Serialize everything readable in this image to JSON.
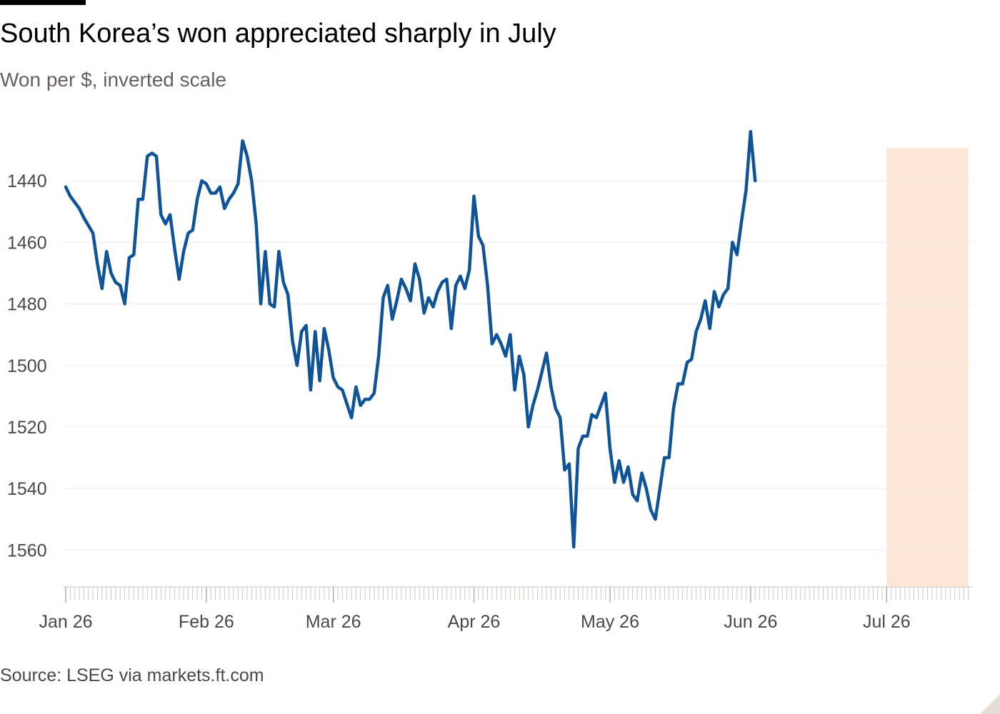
{
  "header": {
    "title": "South Korea’s won appreciated sharply in July",
    "subtitle": "Won per $, inverted scale"
  },
  "footer": {
    "source": "Source: LSEG via markets.ft.com"
  },
  "colors": {
    "line": "#0f5499",
    "highlight": "#fce6d7",
    "grid": "#f2ece6",
    "axis": "#cfc8c2",
    "text_muted": "#66605c",
    "text_axis": "#4d4845"
  },
  "chart_data": {
    "type": "line",
    "title": "South Korea’s won appreciated sharply in July",
    "subtitle": "Won per $, inverted scale",
    "xlabel": "",
    "ylabel": "",
    "inverted_y": true,
    "ylim": [
      1572,
      1423
    ],
    "yticks": [
      1440,
      1460,
      1480,
      1500,
      1520,
      1540,
      1560
    ],
    "xticks": [
      {
        "date": "2026-01-26",
        "label": "Jan 26"
      },
      {
        "date": "2026-02-26",
        "label": "Feb 26"
      },
      {
        "date": "2026-03-26",
        "label": "Mar 26"
      },
      {
        "date": "2026-04-26",
        "label": "Apr 26"
      },
      {
        "date": "2026-05-26",
        "label": "May 26"
      },
      {
        "date": "2026-06-26",
        "label": "Jun 26"
      },
      {
        "date": "2026-07-26",
        "label": "Jul 26"
      }
    ],
    "xlim": [
      "2026-01-26",
      "2026-08-14"
    ],
    "grid": true,
    "highlight_range": [
      "2026-07-26",
      "2026-08-13"
    ],
    "series": [
      {
        "points": [
          [
            "2026-01-26",
            1442
          ],
          [
            "2026-01-27",
            1445
          ],
          [
            "2026-01-28",
            1447
          ],
          [
            "2026-01-29",
            1449
          ],
          [
            "2026-01-30",
            1452
          ],
          [
            "2026-02-01",
            1457
          ],
          [
            "2026-02-02",
            1467
          ],
          [
            "2026-02-03",
            1475
          ],
          [
            "2026-02-04",
            1463
          ],
          [
            "2026-02-05",
            1470
          ],
          [
            "2026-02-06",
            1473
          ],
          [
            "2026-02-07",
            1474
          ],
          [
            "2026-02-08",
            1480
          ],
          [
            "2026-02-09",
            1465
          ],
          [
            "2026-02-10",
            1464
          ],
          [
            "2026-02-11",
            1446
          ],
          [
            "2026-02-12",
            1446
          ],
          [
            "2026-02-13",
            1432
          ],
          [
            "2026-02-14",
            1431
          ],
          [
            "2026-02-15",
            1432
          ],
          [
            "2026-02-16",
            1451
          ],
          [
            "2026-02-17",
            1454
          ],
          [
            "2026-02-18",
            1451
          ],
          [
            "2026-02-19",
            1462
          ],
          [
            "2026-02-20",
            1472
          ],
          [
            "2026-02-21",
            1463
          ],
          [
            "2026-02-22",
            1457
          ],
          [
            "2026-02-23",
            1456
          ],
          [
            "2026-02-24",
            1446
          ],
          [
            "2026-02-25",
            1440
          ],
          [
            "2026-02-26",
            1441
          ],
          [
            "2026-02-27",
            1444
          ],
          [
            "2026-02-28",
            1444
          ],
          [
            "2026-03-01",
            1442
          ],
          [
            "2026-03-02",
            1449
          ],
          [
            "2026-03-03",
            1446
          ],
          [
            "2026-03-04",
            1444
          ],
          [
            "2026-03-05",
            1441
          ],
          [
            "2026-03-06",
            1427
          ],
          [
            "2026-03-07",
            1432
          ],
          [
            "2026-03-08",
            1440
          ],
          [
            "2026-03-09",
            1454
          ],
          [
            "2026-03-10",
            1480
          ],
          [
            "2026-03-11",
            1463
          ],
          [
            "2026-03-12",
            1480
          ],
          [
            "2026-03-13",
            1481
          ],
          [
            "2026-03-14",
            1463
          ],
          [
            "2026-03-15",
            1473
          ],
          [
            "2026-03-16",
            1477
          ],
          [
            "2026-03-17",
            1492
          ],
          [
            "2026-03-18",
            1500
          ],
          [
            "2026-03-19",
            1489
          ],
          [
            "2026-03-20",
            1487
          ],
          [
            "2026-03-21",
            1508
          ],
          [
            "2026-03-22",
            1489
          ],
          [
            "2026-03-23",
            1505
          ],
          [
            "2026-03-24",
            1488
          ],
          [
            "2026-03-25",
            1495
          ],
          [
            "2026-03-26",
            1504
          ],
          [
            "2026-03-27",
            1507
          ],
          [
            "2026-03-28",
            1508
          ],
          [
            "2026-03-30",
            1517
          ],
          [
            "2026-03-31",
            1507
          ],
          [
            "2026-04-01",
            1513
          ],
          [
            "2026-04-02",
            1511
          ],
          [
            "2026-04-03",
            1511
          ],
          [
            "2026-04-04",
            1509
          ],
          [
            "2026-04-05",
            1497
          ],
          [
            "2026-04-06",
            1478
          ],
          [
            "2026-04-07",
            1474
          ],
          [
            "2026-04-08",
            1485
          ],
          [
            "2026-04-09",
            1479
          ],
          [
            "2026-04-10",
            1472
          ],
          [
            "2026-04-11",
            1475
          ],
          [
            "2026-04-12",
            1479
          ],
          [
            "2026-04-13",
            1467
          ],
          [
            "2026-04-14",
            1472
          ],
          [
            "2026-04-15",
            1483
          ],
          [
            "2026-04-16",
            1478
          ],
          [
            "2026-04-17",
            1481
          ],
          [
            "2026-04-18",
            1476
          ],
          [
            "2026-04-19",
            1473
          ],
          [
            "2026-04-20",
            1472
          ],
          [
            "2026-04-21",
            1488
          ],
          [
            "2026-04-22",
            1474
          ],
          [
            "2026-04-23",
            1471
          ],
          [
            "2026-04-24",
            1475
          ],
          [
            "2026-04-25",
            1469
          ],
          [
            "2026-04-26",
            1445
          ],
          [
            "2026-04-27",
            1458
          ],
          [
            "2026-04-28",
            1461
          ],
          [
            "2026-04-29",
            1474
          ],
          [
            "2026-04-30",
            1493
          ],
          [
            "2026-05-01",
            1490
          ],
          [
            "2026-05-02",
            1493
          ],
          [
            "2026-05-03",
            1497
          ],
          [
            "2026-05-04",
            1490
          ],
          [
            "2026-05-05",
            1508
          ],
          [
            "2026-05-06",
            1497
          ],
          [
            "2026-05-07",
            1503
          ],
          [
            "2026-05-08",
            1520
          ],
          [
            "2026-05-09",
            1513
          ],
          [
            "2026-05-10",
            1508
          ],
          [
            "2026-05-11",
            1502
          ],
          [
            "2026-05-12",
            1496
          ],
          [
            "2026-05-13",
            1507
          ],
          [
            "2026-05-14",
            1514
          ],
          [
            "2026-05-15",
            1517
          ],
          [
            "2026-05-16",
            1534
          ],
          [
            "2026-05-17",
            1532
          ],
          [
            "2026-05-18",
            1559
          ],
          [
            "2026-05-19",
            1527
          ],
          [
            "2026-05-20",
            1523
          ],
          [
            "2026-05-21",
            1523
          ],
          [
            "2026-05-22",
            1516
          ],
          [
            "2026-05-23",
            1517
          ],
          [
            "2026-05-24",
            1513
          ],
          [
            "2026-05-25",
            1509
          ],
          [
            "2026-05-26",
            1527
          ],
          [
            "2026-05-27",
            1538
          ],
          [
            "2026-05-28",
            1531
          ],
          [
            "2026-05-29",
            1538
          ],
          [
            "2026-05-30",
            1533
          ],
          [
            "2026-05-31",
            1542
          ],
          [
            "2026-06-01",
            1544
          ],
          [
            "2026-06-02",
            1535
          ],
          [
            "2026-06-03",
            1540
          ],
          [
            "2026-06-04",
            1547
          ],
          [
            "2026-06-05",
            1550
          ],
          [
            "2026-06-06",
            1540
          ],
          [
            "2026-06-07",
            1530
          ],
          [
            "2026-06-08",
            1530
          ],
          [
            "2026-06-09",
            1514
          ],
          [
            "2026-06-10",
            1506
          ],
          [
            "2026-06-11",
            1506
          ],
          [
            "2026-06-12",
            1499
          ],
          [
            "2026-06-13",
            1498
          ],
          [
            "2026-06-14",
            1489
          ],
          [
            "2026-06-15",
            1485
          ],
          [
            "2026-06-16",
            1479
          ],
          [
            "2026-06-17",
            1488
          ],
          [
            "2026-06-18",
            1476
          ],
          [
            "2026-06-19",
            1481
          ],
          [
            "2026-06-20",
            1477
          ],
          [
            "2026-06-21",
            1475
          ],
          [
            "2026-06-22",
            1460
          ],
          [
            "2026-06-23",
            1464
          ],
          [
            "2026-06-24",
            1453
          ],
          [
            "2026-06-25",
            1443
          ],
          [
            "2026-06-26",
            1424
          ],
          [
            "2026-06-27",
            1440
          ]
        ]
      }
    ]
  }
}
